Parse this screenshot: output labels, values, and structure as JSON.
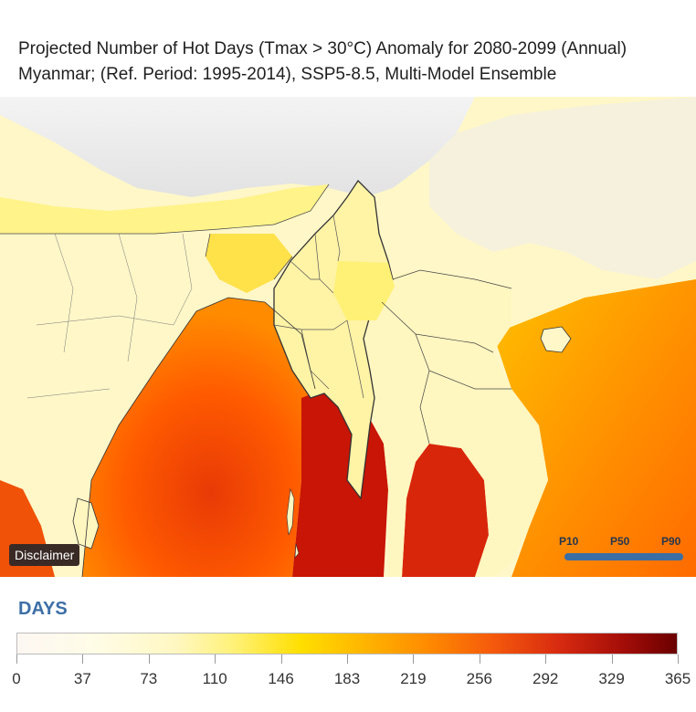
{
  "title": {
    "line1": "Projected Number of Hot Days (Tmax > 30°C) Anomaly for 2080-2099 (Annual)",
    "line2": "Myanmar; (Ref. Period: 1995-2014), SSP5-8.5, Multi-Model Ensemble"
  },
  "map": {
    "disclaimer_label": "Disclaimer",
    "percentiles": [
      "P10",
      "P50",
      "P90"
    ],
    "colors": {
      "mountains": "#e9e9e9",
      "land_pale": "#fffbe3",
      "land_yellow": "#fff27a",
      "myanmar_fill": "#fff3a6",
      "bay_sea": "#ff6a00",
      "andaman_sea": "#c81505",
      "gulf_sea": "#d8260a",
      "south_china_sea": "#ff9a00",
      "border": "#333333",
      "slider": "#3a6ea5"
    }
  },
  "legend": {
    "unit": "DAYS",
    "ticks": [
      "0",
      "37",
      "73",
      "110",
      "146",
      "183",
      "219",
      "256",
      "292",
      "329",
      "365"
    ],
    "min": 0,
    "max": 365
  }
}
